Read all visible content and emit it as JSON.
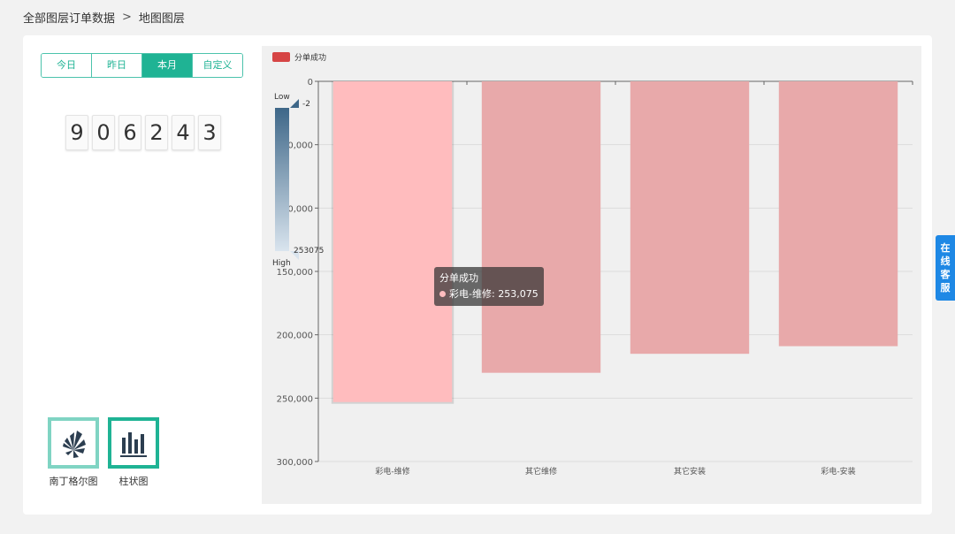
{
  "breadcrumb": {
    "parent": "全部图层订单数据",
    "separator": ">",
    "current": "地图图层"
  },
  "tabs": [
    {
      "label": "今日"
    },
    {
      "label": "昨日"
    },
    {
      "label": "本月"
    },
    {
      "label": "自定义"
    }
  ],
  "active_tab": "本月",
  "counter": {
    "digits": [
      "9",
      "0",
      "6",
      "2",
      "4",
      "3"
    ]
  },
  "chart_types": [
    {
      "label": "南丁格尔图",
      "icon": "nightingale-chart-icon"
    },
    {
      "label": "柱状图",
      "icon": "bar-chart-icon"
    }
  ],
  "active_chart_type": "柱状图",
  "chart_data": {
    "type": "bar",
    "categories": [
      "彩电-维修",
      "其它维修",
      "其它安装",
      "彩电-安装"
    ],
    "series": [
      {
        "name": "分单成功",
        "values": [
          253075,
          230000,
          215000,
          209000
        ]
      }
    ],
    "ylim": [
      0,
      300000
    ],
    "y_inverse": true,
    "yticks": [
      "0",
      "50,000",
      "100,000",
      "150,000",
      "200,000",
      "250,000",
      "300,000"
    ],
    "legend": {
      "label": "分单成功",
      "placement": "top-left",
      "color": "#d64545"
    },
    "visual_map": {
      "low_label": "Low",
      "high_label": "High",
      "min_label": "-2",
      "max_label": "253075"
    },
    "bar_color": "#e8a9aa",
    "highlight_color": "#ffbcbe",
    "highlight_index": 0,
    "tooltip": {
      "title": "分单成功",
      "item": "彩电-维修: 253,075"
    }
  },
  "service": {
    "chars": [
      "在",
      "线",
      "客",
      "服"
    ]
  }
}
